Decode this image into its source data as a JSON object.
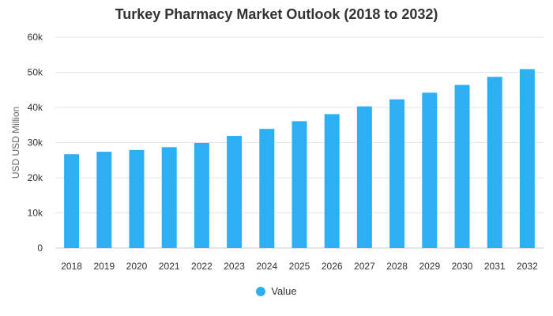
{
  "chart_data": {
    "type": "bar",
    "title": "Turkey Pharmacy Market Outlook (2018 to 2032)",
    "xlabel": "",
    "ylabel": "USD USD Million",
    "categories": [
      "2018",
      "2019",
      "2020",
      "2021",
      "2022",
      "2023",
      "2024",
      "2025",
      "2026",
      "2027",
      "2028",
      "2029",
      "2030",
      "2031",
      "2032"
    ],
    "series": [
      {
        "name": "Value",
        "values": [
          26700,
          27400,
          27900,
          28700,
          29900,
          31900,
          33900,
          36100,
          38100,
          40300,
          42300,
          44200,
          46400,
          48700,
          50900
        ]
      }
    ],
    "ylim": [
      0,
      60000
    ],
    "yticks": [
      0,
      10000,
      20000,
      30000,
      40000,
      50000,
      60000
    ],
    "ytick_labels": [
      "0",
      "10k",
      "20k",
      "30k",
      "40k",
      "50k",
      "60k"
    ],
    "grid": true,
    "legend_position": "bottom-center",
    "bar_color": "#2db0f3",
    "grid_color": "#e6e6e6"
  }
}
